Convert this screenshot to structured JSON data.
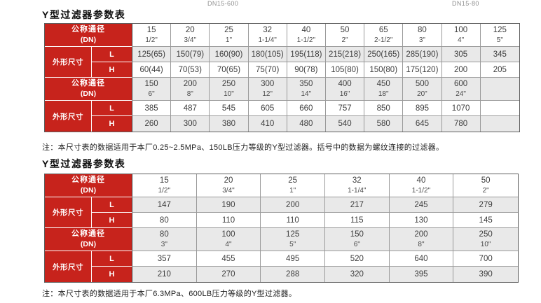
{
  "captions": {
    "left": "DN15-600",
    "right": "DN15-80"
  },
  "labels": {
    "dn": "公称通径",
    "dn_sub": "(DN)",
    "dims": "外形尺寸",
    "l": "L",
    "h": "H"
  },
  "colors": {
    "header_red": "#c7231c",
    "row_alt": "#e9e9e9"
  },
  "table1": {
    "title": "Y型过滤器参数表",
    "note": "注：本尺寸表的数据适用于本厂0.25~2.5MPa、150LB压力等级的Y型过滤器。括号中的数据为螺纹连接的过滤器。",
    "blocks": [
      {
        "dn": [
          [
            "15",
            "1/2\""
          ],
          [
            "20",
            "3/4\""
          ],
          [
            "25",
            "1\""
          ],
          [
            "32",
            "1-1/4\""
          ],
          [
            "40",
            "1-1/2\""
          ],
          [
            "50",
            "2\""
          ],
          [
            "65",
            "2-1/2\""
          ],
          [
            "80",
            "3\""
          ],
          [
            "100",
            "4\""
          ],
          [
            "125",
            "5\""
          ]
        ],
        "l": [
          "125(65)",
          "150(79)",
          "160(90)",
          "180(105)",
          "195(118)",
          "215(218)",
          "250(165)",
          "285(190)",
          "305",
          "345"
        ],
        "h": [
          "60(44)",
          "70(53)",
          "70(65)",
          "75(70)",
          "90(78)",
          "105(80)",
          "150(80)",
          "175(120)",
          "200",
          "205"
        ]
      },
      {
        "dn": [
          [
            "150",
            "6\""
          ],
          [
            "200",
            "8\""
          ],
          [
            "250",
            "10\""
          ],
          [
            "300",
            "12\""
          ],
          [
            "350",
            "14\""
          ],
          [
            "400",
            "16\""
          ],
          [
            "450",
            "18\""
          ],
          [
            "500",
            "20\""
          ],
          [
            "600",
            "24\""
          ],
          [
            "",
            ""
          ]
        ],
        "l": [
          "385",
          "487",
          "545",
          "605",
          "660",
          "757",
          "850",
          "895",
          "1070",
          ""
        ],
        "h": [
          "260",
          "300",
          "380",
          "410",
          "480",
          "540",
          "580",
          "645",
          "780",
          ""
        ]
      }
    ]
  },
  "table2": {
    "title": "Y型过滤器参数表",
    "note": "注：本尺寸表的数据适用于本厂6.3MPa、600LB压力等级的Y型过滤器。",
    "blocks": [
      {
        "dn": [
          [
            "15",
            "1/2\""
          ],
          [
            "20",
            "3/4\""
          ],
          [
            "25",
            "1\""
          ],
          [
            "32",
            "1-1/4\""
          ],
          [
            "40",
            "1-1/2\""
          ],
          [
            "50",
            "2\""
          ]
        ],
        "l": [
          "147",
          "190",
          "200",
          "217",
          "245",
          "279"
        ],
        "h": [
          "80",
          "110",
          "110",
          "115",
          "130",
          "145"
        ]
      },
      {
        "dn": [
          [
            "80",
            "3\""
          ],
          [
            "100",
            "4\""
          ],
          [
            "125",
            "5\""
          ],
          [
            "150",
            "6\""
          ],
          [
            "200",
            "8\""
          ],
          [
            "250",
            "10\""
          ]
        ],
        "l": [
          "357",
          "455",
          "495",
          "520",
          "640",
          "700"
        ],
        "h": [
          "210",
          "270",
          "288",
          "320",
          "395",
          "390"
        ]
      }
    ]
  }
}
